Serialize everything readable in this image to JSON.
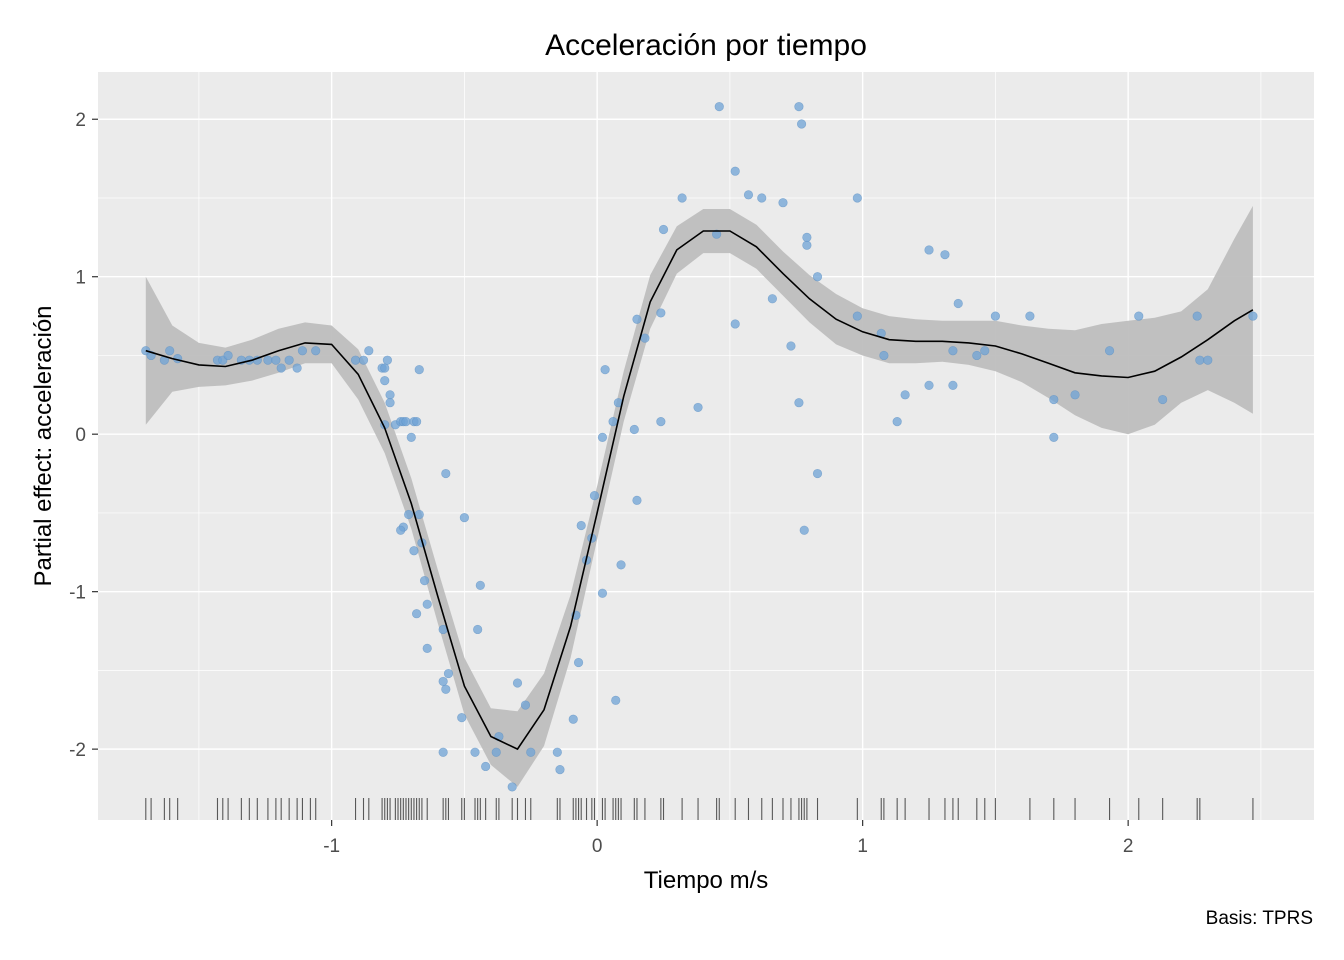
{
  "chart_data": {
    "type": "line",
    "title": "Acceleración por tiempo",
    "xlabel": "Tiempo m/s",
    "ylabel": "Partial effect: acceleración",
    "caption": "Basis: TPRS",
    "xlim": [
      -1.88,
      2.7
    ],
    "ylim": [
      -2.45,
      2.3
    ],
    "x_ticks": [
      -1,
      0,
      1,
      2
    ],
    "x_tick_labels": [
      "-1",
      "0",
      "1",
      "2"
    ],
    "y_ticks": [
      -2,
      -1,
      0,
      1,
      2
    ],
    "y_tick_labels": [
      "-2",
      "-1",
      "0",
      "1",
      "2"
    ],
    "grid": true,
    "colors": {
      "panel": "#ebebeb",
      "grid": "#ffffff",
      "band": "#bebebe",
      "line": "#000000",
      "points": "#6fa3d6",
      "rug": "#333333"
    },
    "smooth": {
      "name": "fit",
      "x": [
        -1.7,
        -1.6,
        -1.5,
        -1.4,
        -1.3,
        -1.2,
        -1.1,
        -1.0,
        -0.9,
        -0.8,
        -0.7,
        -0.6,
        -0.5,
        -0.4,
        -0.3,
        -0.2,
        -0.1,
        0.0,
        0.1,
        0.2,
        0.3,
        0.4,
        0.5,
        0.6,
        0.7,
        0.8,
        0.9,
        1.0,
        1.1,
        1.2,
        1.3,
        1.4,
        1.5,
        1.6,
        1.7,
        1.8,
        1.9,
        2.0,
        2.1,
        2.2,
        2.3,
        2.4,
        2.47
      ],
      "y": [
        0.53,
        0.48,
        0.44,
        0.43,
        0.47,
        0.53,
        0.58,
        0.57,
        0.38,
        0.04,
        -0.44,
        -1.03,
        -1.6,
        -1.92,
        -2.0,
        -1.75,
        -1.22,
        -0.5,
        0.24,
        0.84,
        1.17,
        1.29,
        1.29,
        1.19,
        1.02,
        0.86,
        0.73,
        0.65,
        0.6,
        0.59,
        0.59,
        0.58,
        0.56,
        0.51,
        0.45,
        0.39,
        0.37,
        0.36,
        0.4,
        0.49,
        0.6,
        0.72,
        0.79
      ],
      "lower": [
        0.06,
        0.27,
        0.3,
        0.31,
        0.34,
        0.39,
        0.45,
        0.45,
        0.22,
        -0.12,
        -0.6,
        -1.2,
        -1.78,
        -2.1,
        -2.24,
        -1.98,
        -1.42,
        -0.67,
        0.08,
        0.67,
        1.02,
        1.15,
        1.15,
        1.05,
        0.88,
        0.71,
        0.57,
        0.5,
        0.45,
        0.45,
        0.46,
        0.44,
        0.4,
        0.33,
        0.23,
        0.12,
        0.04,
        0.0,
        0.06,
        0.2,
        0.28,
        0.2,
        0.13
      ],
      "upper": [
        1.0,
        0.69,
        0.58,
        0.55,
        0.6,
        0.67,
        0.71,
        0.69,
        0.54,
        0.2,
        -0.28,
        -0.86,
        -1.42,
        -1.74,
        -1.76,
        -1.52,
        -1.02,
        -0.33,
        0.4,
        1.01,
        1.32,
        1.43,
        1.43,
        1.33,
        1.16,
        1.01,
        0.89,
        0.8,
        0.75,
        0.73,
        0.72,
        0.72,
        0.72,
        0.69,
        0.67,
        0.66,
        0.7,
        0.72,
        0.74,
        0.78,
        0.92,
        1.24,
        1.45
      ]
    },
    "points": {
      "x": [
        -1.7,
        -1.68,
        -1.63,
        -1.61,
        -1.58,
        -1.43,
        -1.41,
        -1.39,
        -1.34,
        -1.31,
        -1.28,
        -1.24,
        -1.21,
        -1.19,
        -1.16,
        -1.13,
        -1.11,
        -1.06,
        -0.91,
        -0.88,
        -0.86,
        -0.81,
        -0.8,
        -0.79,
        -0.8,
        -0.78,
        -0.78,
        -0.8,
        -0.76,
        -0.74,
        -0.73,
        -0.72,
        -0.7,
        -0.69,
        -0.68,
        -0.67,
        -0.67,
        -0.73,
        -0.74,
        -0.71,
        -0.69,
        -0.68,
        -0.66,
        -0.65,
        -0.64,
        -0.64,
        -0.58,
        -0.58,
        -0.58,
        -0.57,
        -0.56,
        -0.57,
        -0.5,
        -0.51,
        -0.44,
        -0.45,
        -0.46,
        -0.42,
        -0.38,
        -0.37,
        -0.32,
        -0.3,
        -0.27,
        -0.25,
        -0.15,
        -0.14,
        -0.09,
        -0.07,
        -0.08,
        -0.06,
        -0.04,
        -0.02,
        -0.01,
        0.02,
        0.02,
        0.03,
        0.06,
        0.07,
        0.09,
        0.08,
        0.14,
        0.15,
        0.15,
        0.18,
        0.24,
        0.24,
        0.25,
        0.32,
        0.38,
        0.45,
        0.46,
        0.52,
        0.52,
        0.57,
        0.62,
        0.66,
        0.7,
        0.73,
        0.76,
        0.77,
        0.76,
        0.78,
        0.79,
        0.79,
        0.83,
        0.83,
        0.98,
        0.98,
        1.07,
        1.08,
        1.13,
        1.16,
        1.25,
        1.25,
        1.31,
        1.34,
        1.34,
        1.36,
        1.43,
        1.46,
        1.5,
        1.63,
        1.72,
        1.72,
        1.8,
        1.93,
        2.04,
        2.13,
        2.26,
        2.27,
        2.3,
        2.47
      ],
      "y": [
        0.53,
        0.5,
        0.47,
        0.53,
        0.48,
        0.47,
        0.47,
        0.5,
        0.47,
        0.47,
        0.47,
        0.47,
        0.47,
        0.42,
        0.47,
        0.42,
        0.53,
        0.53,
        0.47,
        0.47,
        0.53,
        0.42,
        0.42,
        0.47,
        0.34,
        0.25,
        0.2,
        0.06,
        0.06,
        0.08,
        0.08,
        0.08,
        -0.02,
        0.08,
        0.08,
        0.41,
        -0.51,
        -0.59,
        -0.61,
        -0.51,
        -0.74,
        -1.14,
        -0.69,
        -0.93,
        -1.08,
        -1.36,
        -1.24,
        -1.57,
        -2.02,
        -1.62,
        -1.52,
        -0.25,
        -0.53,
        -1.8,
        -0.96,
        -1.24,
        -2.02,
        -2.11,
        -2.02,
        -1.92,
        -2.24,
        -1.58,
        -1.72,
        -2.02,
        -2.02,
        -2.13,
        -1.81,
        -1.45,
        -1.15,
        -0.58,
        -0.8,
        -0.66,
        -0.39,
        -0.02,
        -1.01,
        0.41,
        0.08,
        -1.69,
        -0.83,
        0.2,
        0.03,
        -0.42,
        0.73,
        0.61,
        0.77,
        0.08,
        1.3,
        1.5,
        0.17,
        1.27,
        2.08,
        0.7,
        1.67,
        1.52,
        1.5,
        0.86,
        1.47,
        0.56,
        2.08,
        1.97,
        0.2,
        -0.61,
        1.2,
        1.25,
        1.0,
        -0.25,
        1.5,
        0.75,
        0.64,
        0.5,
        0.08,
        0.25,
        1.17,
        0.31,
        1.14,
        0.53,
        0.31,
        0.83,
        0.5,
        0.53,
        0.75,
        0.75,
        0.22,
        -0.02,
        0.25,
        0.53,
        0.75,
        0.22,
        0.75,
        0.47,
        0.47,
        0.75
      ]
    },
    "rug": [
      -1.7,
      -1.68,
      -1.63,
      -1.61,
      -1.58,
      -1.43,
      -1.41,
      -1.39,
      -1.34,
      -1.31,
      -1.28,
      -1.24,
      -1.21,
      -1.19,
      -1.16,
      -1.13,
      -1.11,
      -1.08,
      -1.06,
      -0.91,
      -0.88,
      -0.86,
      -0.81,
      -0.8,
      -0.79,
      -0.78,
      -0.76,
      -0.75,
      -0.74,
      -0.73,
      -0.72,
      -0.71,
      -0.7,
      -0.69,
      -0.68,
      -0.67,
      -0.66,
      -0.64,
      -0.58,
      -0.57,
      -0.56,
      -0.51,
      -0.5,
      -0.46,
      -0.45,
      -0.44,
      -0.42,
      -0.38,
      -0.37,
      -0.32,
      -0.3,
      -0.27,
      -0.25,
      -0.15,
      -0.14,
      -0.09,
      -0.08,
      -0.07,
      -0.06,
      -0.04,
      -0.02,
      -0.01,
      0.02,
      0.03,
      0.06,
      0.07,
      0.08,
      0.09,
      0.14,
      0.15,
      0.18,
      0.24,
      0.25,
      0.32,
      0.38,
      0.45,
      0.46,
      0.52,
      0.57,
      0.62,
      0.66,
      0.7,
      0.73,
      0.76,
      0.77,
      0.78,
      0.79,
      0.83,
      0.98,
      1.07,
      1.08,
      1.13,
      1.16,
      1.25,
      1.31,
      1.34,
      1.36,
      1.43,
      1.46,
      1.5,
      1.63,
      1.72,
      1.8,
      1.93,
      2.04,
      2.13,
      2.26,
      2.27,
      2.47
    ]
  }
}
